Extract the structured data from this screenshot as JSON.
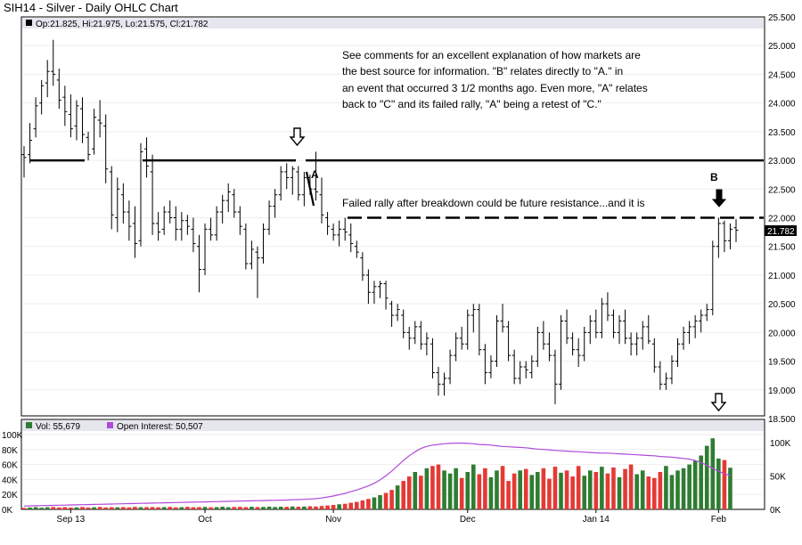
{
  "title": "SIH14 - Silver - Daily OHLC Chart",
  "price_legend": "Op:21.825, Hi:21.975, Lo:21.575, Cl:21.782",
  "last_price_label": "21.782",
  "volume_legend": {
    "vol": "Vol: 55,679",
    "oi": "Open Interest: 50,507"
  },
  "annotations": {
    "comment_lines": [
      "See comments for an excellent explanation of how markets are",
      "the best source for information.  \"B\" relates directly to \"A.\" in",
      "an event that occurred 3  1/2 months ago.  Even more, \"A\" relates",
      "back to \"C\" and its failed rally, \"A\" being a retest of \"C.\""
    ],
    "resistance_note": "Failed rally after breakdown could be future resistance...and it is",
    "label_a": "A",
    "label_b": "B"
  },
  "colors": {
    "up_volume": "#2e7d32",
    "down_volume": "#e53935",
    "open_interest": "#b04ad8",
    "price_bar": "#000000",
    "panel_header": "#e6e6ee"
  },
  "chart_data": [
    {
      "type": "ohlc",
      "title": "SIH14 - Silver - Daily OHLC Chart",
      "y_ticks": [
        "25.500",
        "25.000",
        "24.500",
        "24.000",
        "23.500",
        "23.000",
        "22.500",
        "22.000",
        "21.500",
        "21.000",
        "20.500",
        "20.000",
        "19.500",
        "19.000",
        "18.500"
      ],
      "ylim": [
        18.5,
        25.5
      ],
      "x_tick_labels": [
        "Sep 13",
        "Oct",
        "Nov",
        "Dec",
        "Jan 14",
        "Feb"
      ],
      "grid": true,
      "reference_levels": [
        {
          "style": "solid",
          "value": 23.0
        },
        {
          "style": "dashed",
          "value": 22.0
        }
      ],
      "ohlc": [
        [
          23.1,
          23.25,
          22.7,
          23.05
        ],
        [
          23.1,
          23.65,
          22.95,
          23.35
        ],
        [
          23.55,
          24.1,
          23.4,
          23.95
        ],
        [
          24.0,
          24.4,
          23.8,
          24.3
        ],
        [
          24.35,
          24.75,
          24.1,
          24.55
        ],
        [
          24.55,
          25.1,
          24.3,
          24.5
        ],
        [
          24.4,
          24.6,
          23.9,
          24.05
        ],
        [
          24.1,
          24.3,
          23.6,
          23.85
        ],
        [
          23.8,
          24.15,
          23.4,
          23.55
        ],
        [
          23.6,
          24.05,
          23.35,
          23.95
        ],
        [
          23.9,
          24.1,
          23.3,
          23.45
        ],
        [
          23.4,
          23.5,
          23.0,
          23.1
        ],
        [
          23.2,
          23.9,
          23.1,
          23.75
        ],
        [
          23.7,
          24.05,
          23.4,
          23.65
        ],
        [
          23.6,
          23.8,
          22.6,
          22.85
        ],
        [
          22.8,
          22.9,
          21.8,
          22.05
        ],
        [
          22.0,
          22.7,
          21.75,
          22.5
        ],
        [
          22.4,
          22.6,
          21.9,
          22.1
        ],
        [
          22.1,
          22.3,
          21.6,
          21.85
        ],
        [
          21.9,
          22.2,
          21.3,
          21.55
        ],
        [
          21.6,
          23.3,
          21.5,
          23.15
        ],
        [
          23.2,
          23.4,
          22.7,
          22.9
        ],
        [
          22.8,
          23.1,
          21.7,
          21.9
        ],
        [
          21.9,
          22.1,
          21.6,
          21.75
        ],
        [
          21.8,
          22.2,
          21.7,
          22.1
        ],
        [
          22.1,
          22.3,
          21.9,
          22.0
        ],
        [
          22.0,
          22.2,
          21.6,
          21.8
        ],
        [
          21.8,
          22.1,
          21.6,
          21.95
        ],
        [
          21.95,
          22.05,
          21.7,
          21.85
        ],
        [
          21.8,
          22.0,
          21.4,
          21.55
        ],
        [
          21.5,
          21.7,
          20.7,
          21.1
        ],
        [
          21.1,
          21.9,
          21.0,
          21.8
        ],
        [
          21.8,
          22.0,
          21.6,
          21.7
        ],
        [
          21.7,
          22.2,
          21.6,
          22.1
        ],
        [
          22.1,
          22.4,
          21.9,
          22.3
        ],
        [
          22.3,
          22.6,
          22.1,
          22.45
        ],
        [
          22.4,
          22.5,
          22.0,
          22.1
        ],
        [
          22.1,
          22.2,
          21.7,
          21.85
        ],
        [
          21.8,
          21.9,
          21.1,
          21.2
        ],
        [
          21.2,
          21.6,
          21.1,
          21.45
        ],
        [
          21.4,
          21.5,
          20.6,
          21.3
        ],
        [
          21.3,
          21.9,
          21.2,
          21.8
        ],
        [
          21.8,
          22.3,
          21.7,
          22.2
        ],
        [
          22.2,
          22.5,
          22.0,
          22.4
        ],
        [
          22.4,
          22.9,
          22.3,
          22.8
        ],
        [
          22.8,
          22.95,
          22.5,
          22.7
        ],
        [
          22.7,
          22.9,
          22.4,
          22.85
        ],
        [
          22.8,
          22.9,
          22.3,
          22.4
        ],
        [
          22.4,
          22.8,
          22.2,
          22.7
        ],
        [
          22.7,
          22.75,
          22.4,
          22.5
        ],
        [
          22.5,
          23.15,
          22.3,
          22.45
        ],
        [
          22.4,
          22.7,
          21.9,
          22.05
        ],
        [
          22.0,
          22.1,
          21.7,
          21.85
        ],
        [
          21.8,
          21.9,
          21.6,
          21.7
        ],
        [
          21.7,
          21.95,
          21.5,
          21.8
        ],
        [
          21.8,
          22.0,
          21.6,
          21.75
        ],
        [
          21.7,
          21.9,
          21.4,
          21.55
        ],
        [
          21.5,
          21.6,
          21.3,
          21.4
        ],
        [
          21.3,
          21.4,
          20.9,
          21.0
        ],
        [
          21.0,
          21.1,
          20.5,
          20.7
        ],
        [
          20.7,
          20.9,
          20.5,
          20.8
        ],
        [
          20.8,
          20.9,
          20.6,
          20.85
        ],
        [
          20.85,
          20.9,
          20.4,
          20.6
        ],
        [
          20.5,
          20.55,
          20.1,
          20.3
        ],
        [
          20.3,
          20.5,
          20.2,
          20.4
        ],
        [
          20.3,
          20.4,
          19.9,
          20.0
        ],
        [
          20.0,
          20.1,
          19.7,
          19.9
        ],
        [
          19.9,
          20.2,
          19.8,
          20.1
        ],
        [
          20.1,
          20.2,
          19.7,
          19.8
        ],
        [
          19.8,
          20.0,
          19.6,
          19.9
        ],
        [
          19.8,
          19.9,
          19.2,
          19.3
        ],
        [
          19.3,
          19.4,
          18.9,
          19.1
        ],
        [
          19.1,
          19.3,
          18.9,
          19.2
        ],
        [
          19.2,
          19.7,
          19.1,
          19.6
        ],
        [
          19.6,
          20.0,
          19.5,
          19.9
        ],
        [
          19.9,
          20.1,
          19.7,
          19.8
        ],
        [
          19.8,
          20.4,
          19.7,
          20.3
        ],
        [
          20.3,
          20.5,
          20.0,
          20.4
        ],
        [
          20.4,
          20.5,
          19.6,
          19.7
        ],
        [
          19.7,
          19.8,
          19.1,
          19.3
        ],
        [
          19.3,
          19.6,
          19.2,
          19.5
        ],
        [
          19.5,
          20.3,
          19.4,
          20.2
        ],
        [
          20.2,
          20.5,
          20.0,
          20.1
        ],
        [
          20.1,
          20.2,
          19.5,
          19.6
        ],
        [
          19.6,
          19.7,
          19.1,
          19.2
        ],
        [
          19.2,
          19.5,
          19.1,
          19.4
        ],
        [
          19.4,
          19.5,
          19.2,
          19.35
        ],
        [
          19.3,
          19.6,
          19.2,
          19.5
        ],
        [
          19.5,
          20.1,
          19.4,
          20.0
        ],
        [
          20.0,
          20.2,
          19.7,
          19.8
        ],
        [
          19.8,
          20.0,
          19.5,
          19.6
        ],
        [
          19.6,
          19.7,
          18.75,
          19.1
        ],
        [
          19.1,
          20.3,
          19.0,
          20.2
        ],
        [
          20.2,
          20.4,
          19.8,
          19.9
        ],
        [
          19.9,
          20.0,
          19.6,
          19.7
        ],
        [
          19.7,
          19.9,
          19.4,
          19.6
        ],
        [
          19.6,
          20.1,
          19.5,
          20.0
        ],
        [
          20.0,
          20.3,
          19.8,
          20.2
        ],
        [
          20.2,
          20.4,
          19.9,
          20.0
        ],
        [
          20.0,
          20.6,
          19.9,
          20.5
        ],
        [
          20.5,
          20.7,
          20.2,
          20.3
        ],
        [
          20.3,
          20.4,
          19.9,
          20.0
        ],
        [
          20.0,
          20.3,
          19.8,
          20.2
        ],
        [
          20.2,
          20.4,
          19.8,
          19.9
        ],
        [
          19.9,
          20.0,
          19.6,
          19.8
        ],
        [
          19.8,
          20.0,
          19.6,
          19.9
        ],
        [
          19.9,
          20.2,
          19.7,
          20.1
        ],
        [
          20.1,
          20.3,
          19.8,
          19.85
        ],
        [
          19.8,
          19.9,
          19.3,
          19.4
        ],
        [
          19.4,
          19.5,
          19.0,
          19.1
        ],
        [
          19.1,
          19.3,
          19.0,
          19.2
        ],
        [
          19.2,
          19.6,
          19.1,
          19.5
        ],
        [
          19.5,
          19.9,
          19.4,
          19.8
        ],
        [
          19.8,
          20.1,
          19.7,
          20.0
        ],
        [
          20.0,
          20.2,
          19.8,
          20.1
        ],
        [
          20.1,
          20.3,
          19.9,
          20.2
        ],
        [
          20.2,
          20.4,
          20.0,
          20.3
        ],
        [
          20.3,
          20.5,
          20.2,
          20.4
        ],
        [
          20.4,
          21.6,
          20.3,
          21.5
        ],
        [
          21.5,
          22.0,
          21.3,
          21.9
        ],
        [
          21.9,
          21.95,
          21.4,
          21.6
        ],
        [
          21.6,
          21.9,
          21.45,
          21.8
        ],
        [
          21.825,
          21.975,
          21.575,
          21.782
        ]
      ],
      "bar_colored_volume": true
    },
    {
      "type": "bar",
      "title": "Vol: 55,679 / Open Interest: 50,507",
      "y_ticks_left": [
        "100K",
        "80K",
        "60K",
        "40K",
        "20K",
        "0K"
      ],
      "y_ticks_right": [
        "100K",
        "50K",
        "0K"
      ],
      "ylim_left": [
        0,
        100000
      ],
      "ylim_right": [
        0,
        125000
      ],
      "series": [
        {
          "name": "Vol",
          "values": [
            2000,
            2500,
            3000,
            2200,
            2800,
            3100,
            2600,
            3000,
            2400,
            2700,
            3200,
            2500,
            2900,
            3300,
            2600,
            3000,
            2800,
            3100,
            2700,
            3400,
            2900,
            3000,
            3200,
            2800,
            3100,
            3300,
            2700,
            3000,
            3400,
            2900,
            3100,
            3300,
            2800,
            3000,
            3600,
            2900,
            3200,
            3400,
            3000,
            3500,
            3100,
            3300,
            3700,
            3200,
            3600,
            3400,
            3900,
            3500,
            3700,
            4200,
            3800,
            4500,
            5200,
            6000,
            6800,
            7500,
            8800,
            10000,
            12000,
            14000,
            16000,
            19000,
            22000,
            26000,
            32000,
            38000,
            44000,
            50000,
            45000,
            55000,
            58000,
            60000,
            52000,
            48000,
            55000,
            42000,
            50000,
            60000,
            47000,
            55000,
            43000,
            52000,
            58000,
            38000,
            48000,
            52000,
            54000,
            46000,
            50000,
            55000,
            41000,
            57000,
            49000,
            52000,
            44000,
            58000,
            45000,
            52000,
            50000,
            57000,
            48000,
            56000,
            43000,
            54000,
            60000,
            47000,
            52000,
            44000,
            42000,
            50000,
            58000,
            46000,
            52000,
            55000,
            60000,
            65000,
            72000,
            85000,
            95000,
            68000,
            66000,
            55679
          ]
        },
        {
          "name": "Open Interest",
          "values": [
            5000,
            5200,
            5400,
            5600,
            5800,
            6000,
            6200,
            6400,
            6600,
            6800,
            7000,
            7200,
            7400,
            7600,
            7800,
            8000,
            8200,
            8400,
            8600,
            8800,
            9000,
            9200,
            9400,
            9600,
            9800,
            10000,
            10200,
            10400,
            10600,
            10800,
            11000,
            11200,
            11400,
            11600,
            11800,
            12000,
            12200,
            12400,
            12600,
            12800,
            13000,
            13200,
            13400,
            13600,
            13800,
            14000,
            14300,
            14600,
            15000,
            15500,
            16000,
            17000,
            18500,
            20000,
            22000,
            24000,
            26500,
            29000,
            32000,
            35000,
            39000,
            44000,
            50000,
            57000,
            65000,
            73000,
            80000,
            86000,
            91000,
            94000,
            96000,
            97000,
            98000,
            98500,
            99000,
            99000,
            98500,
            98000,
            97000,
            96500,
            96000,
            95000,
            94000,
            93500,
            93000,
            92500,
            92000,
            91000,
            90000,
            89500,
            89000,
            88000,
            87500,
            87000,
            86500,
            86000,
            85500,
            85000,
            84500,
            84000,
            84000,
            83500,
            83000,
            82500,
            82000,
            81500,
            81000,
            80500,
            80000,
            79000,
            78500,
            78000,
            77000,
            76000,
            75000,
            73000,
            70000,
            66000,
            61000,
            57000,
            53000,
            50507
          ]
        }
      ],
      "x_tick_labels": [
        "Sep 13",
        "Oct",
        "Nov",
        "Dec",
        "Jan 14",
        "Feb"
      ]
    }
  ]
}
